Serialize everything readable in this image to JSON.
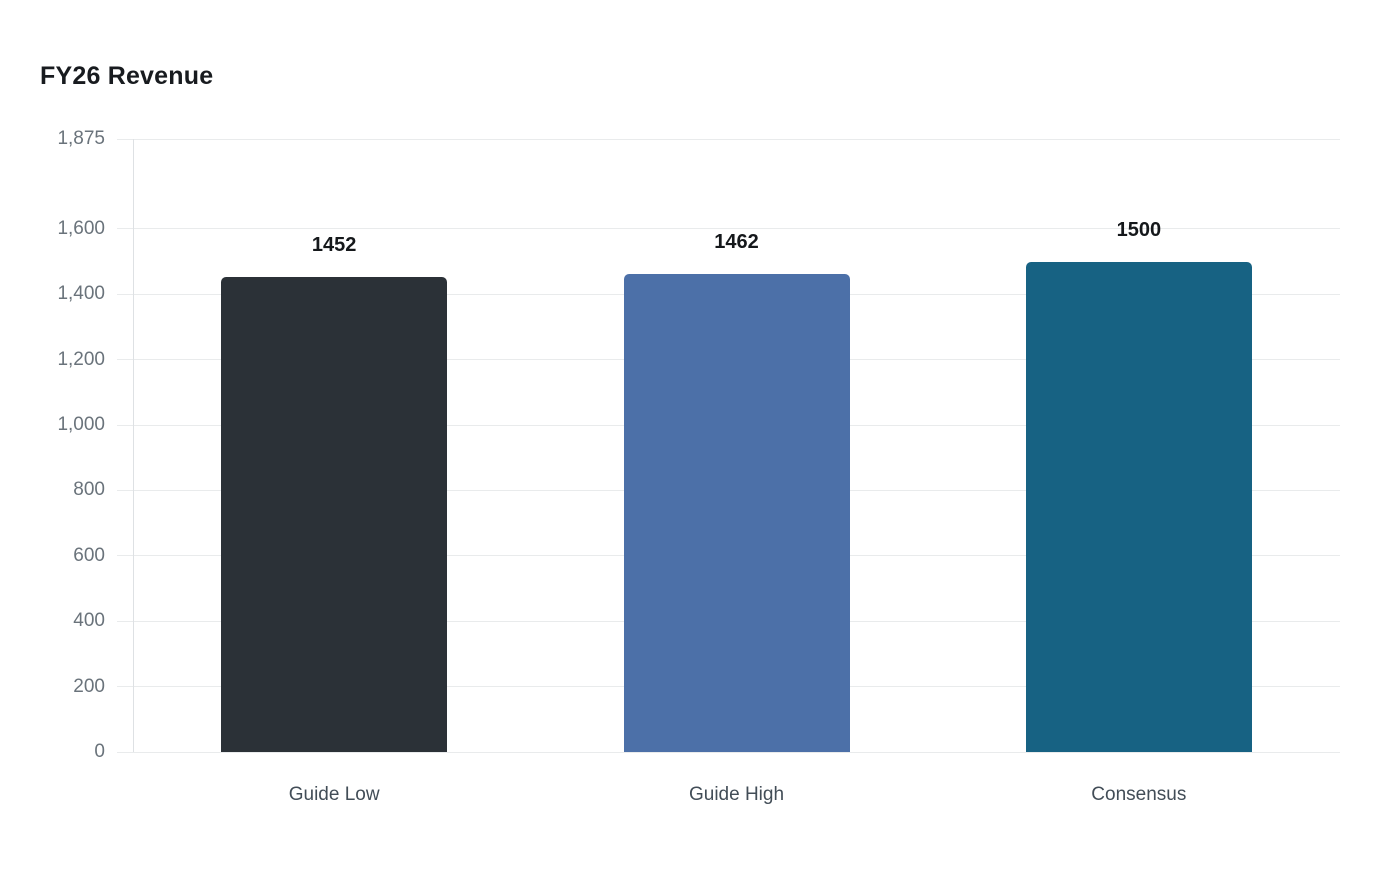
{
  "chart_data": {
    "type": "bar",
    "title": "FY26 Revenue",
    "categories": [
      "Guide Low",
      "Guide High",
      "Consensus"
    ],
    "values": [
      1452,
      1462,
      1500
    ],
    "data_labels": [
      "1452",
      "1462",
      "1500"
    ],
    "bar_colors": [
      "#2b3137",
      "#4c70a8",
      "#176283"
    ],
    "xlabel": "",
    "ylabel": "",
    "ylim": [
      0,
      1875
    ],
    "yticks": [
      0,
      200,
      400,
      600,
      800,
      1000,
      1200,
      1400,
      1600,
      1875
    ],
    "ytick_labels": [
      "0",
      "200",
      "400",
      "600",
      "800",
      "1,000",
      "1,200",
      "1,400",
      "1,600",
      "1,875"
    ],
    "grid": "horizontal",
    "legend": "none",
    "colors": {
      "background": "#ffffff",
      "grid": "#e9ebec",
      "axis_line": "#dee1e4",
      "tick_label": "#6a737b",
      "category_label": "#424d57",
      "value_label": "#15181b",
      "title": "#181b1f"
    }
  }
}
